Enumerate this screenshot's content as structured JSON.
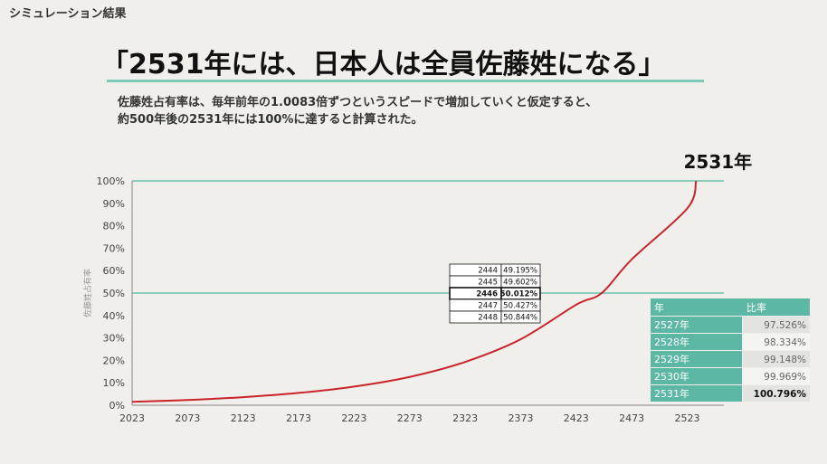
{
  "section_label": "シミュレーション結果",
  "headline": "「2531年には、日本人は全員佐藤姓になる」",
  "description": [
    "佐藤姓占有率は、毎年前年の1.0083倍ずつというスピードで増加していくと仮定すると、",
    "約500年後の2531年には100%に達すると計算された。"
  ],
  "colors": {
    "curve": "#c8242c",
    "teal": "#6cc0aa",
    "table_head": "#5cb8a4"
  },
  "chart_data": {
    "type": "line",
    "title": "",
    "xlabel": "",
    "ylabel": "佐藤姓占有率",
    "x_ticks": [
      "2023",
      "2073",
      "2123",
      "2173",
      "2223",
      "2273",
      "2323",
      "2373",
      "2423",
      "2473",
      "2523"
    ],
    "y_ticks": [
      "0%",
      "10%",
      "20%",
      "30%",
      "40%",
      "50%",
      "60%",
      "70%",
      "80%",
      "90%",
      "100%"
    ],
    "xlim": [
      2023,
      2556
    ],
    "ylim": [
      0,
      100
    ],
    "grid": false,
    "reference_lines": [
      50,
      100
    ],
    "series": [
      {
        "x": [
          2023,
          2073,
          2123,
          2173,
          2223,
          2273,
          2323,
          2373,
          2423,
          2446,
          2473,
          2523,
          2531
        ],
        "y": [
          1.5,
          2.3,
          3.6,
          5.5,
          8.3,
          12.6,
          19.3,
          29.4,
          44.8,
          50.0,
          65.0,
          87.7,
          100.0
        ]
      }
    ],
    "annotations": [
      {
        "x": 2531,
        "y": 100,
        "text": "2531年"
      }
    ],
    "inset_table": {
      "rows": [
        {
          "year": "2444",
          "value": "49.195%",
          "bold": false
        },
        {
          "year": "2445",
          "value": "49.602%",
          "bold": false
        },
        {
          "year": "2446",
          "value": "50.012%",
          "bold": true
        },
        {
          "year": "2447",
          "value": "50.427%",
          "bold": false
        },
        {
          "year": "2448",
          "value": "50.844%",
          "bold": false
        }
      ]
    },
    "side_table": {
      "headers": [
        "年",
        "比率"
      ],
      "rows": [
        {
          "year": "2527年",
          "value": "97.526%",
          "bold": false
        },
        {
          "year": "2528年",
          "value": "98.334%",
          "bold": false
        },
        {
          "year": "2529年",
          "value": "99.148%",
          "bold": false
        },
        {
          "year": "2530年",
          "value": "99.969%",
          "bold": false
        },
        {
          "year": "2531年",
          "value": "100.796%",
          "bold": true
        }
      ]
    }
  }
}
